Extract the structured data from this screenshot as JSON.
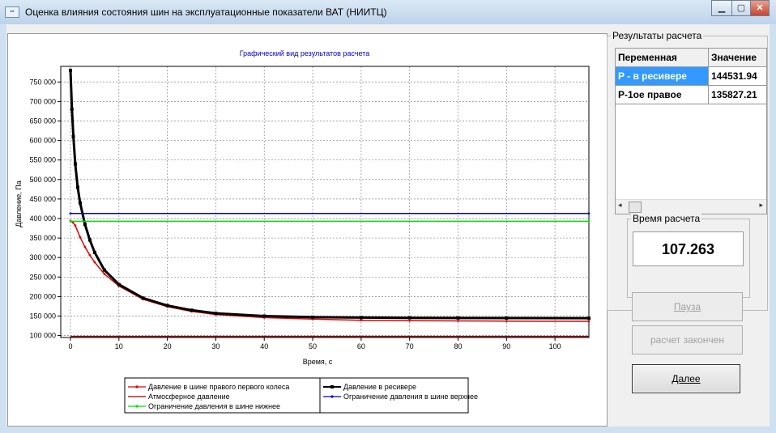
{
  "window": {
    "title": "Оценка влияния состояния шин на эксплуатационные показатели ВАТ (НИИТЦ)",
    "icon": "app-icon"
  },
  "chart_data": {
    "type": "line",
    "title": "Графический вид результатов расчета",
    "xlabel": "Время, с",
    "ylabel": "Давление, Па",
    "xlim": [
      -2,
      107
    ],
    "ylim": [
      95000,
      790000
    ],
    "xticks": [
      "0",
      "10",
      "20",
      "30",
      "40",
      "50",
      "60",
      "70",
      "80",
      "90",
      "100"
    ],
    "yticks": [
      "100 000",
      "150 000",
      "200 000",
      "250 000",
      "300 000",
      "350 000",
      "400 000",
      "450 000",
      "500 000",
      "550 000",
      "600 000",
      "650 000",
      "700 000",
      "750 000"
    ],
    "grid": true,
    "legend_position": "bottom",
    "series": [
      {
        "name": "Давление в шине правого первого колеса",
        "color": "#e00000",
        "marker": "dot",
        "x": [
          0,
          0.5,
          1,
          2,
          3,
          4,
          5,
          7,
          10,
          15,
          20,
          25,
          30,
          40,
          50,
          60,
          70,
          80,
          90,
          107
        ],
        "y": [
          394000,
          390000,
          382000,
          352000,
          327000,
          306000,
          288000,
          258000,
          227000,
          193000,
          174000,
          162000,
          154000,
          146000,
          142000,
          139000,
          138000,
          137500,
          137000,
          136500
        ]
      },
      {
        "name": "Давление в ресивере",
        "color": "#000000",
        "marker": "square",
        "x": [
          0,
          0.3,
          0.6,
          1,
          1.5,
          2,
          3,
          4,
          5,
          7,
          10,
          15,
          20,
          25,
          30,
          40,
          50,
          60,
          70,
          80,
          90,
          107
        ],
        "y": [
          780000,
          680000,
          610000,
          540000,
          480000,
          440000,
          385000,
          345000,
          313000,
          268000,
          231000,
          196000,
          177000,
          165000,
          157000,
          150000,
          147000,
          146000,
          145500,
          145000,
          144800,
          144500
        ]
      },
      {
        "name": "Атмосферное давление",
        "color": "#8b0000",
        "marker": "none",
        "x": [
          0,
          107
        ],
        "y": [
          98000,
          98000
        ]
      },
      {
        "name": "Ограничение давления в шине верхнее",
        "color": "#0000cc",
        "marker": "dot",
        "x": [
          0,
          107
        ],
        "y": [
          413000,
          413000
        ]
      },
      {
        "name": "Ограничение давления в шине нижнее",
        "color": "#00dd00",
        "marker": "dot",
        "x": [
          0,
          107
        ],
        "y": [
          393000,
          393000
        ]
      }
    ]
  },
  "results": {
    "caption": "Результаты расчета",
    "columns": [
      "Переменная",
      "Значение"
    ],
    "rows": [
      {
        "name": "P - в ресивере",
        "value": "144531.94"
      },
      {
        "name": "P-1ое правое",
        "value": "135827.21"
      }
    ]
  },
  "time": {
    "caption": "Время расчета",
    "value": "107.263"
  },
  "buttons": {
    "pause": "Пауза",
    "status": "расчет закончен",
    "next": "Далее"
  }
}
